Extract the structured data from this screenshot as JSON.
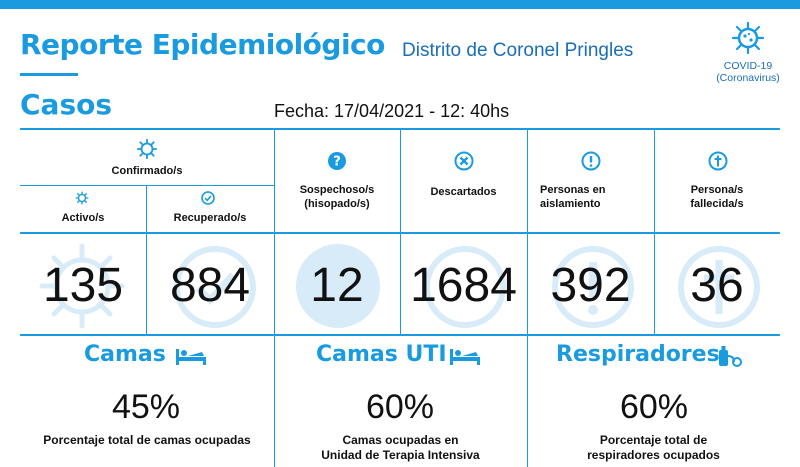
{
  "header": {
    "title": "Reporte Epidemiológico",
    "subtitle": "Distrito de Coronel Pringles",
    "section": "Casos",
    "fecha": "Fecha: 17/04/2021 - 12: 40hs",
    "covid_line1": "COVID-19",
    "covid_line2": "(Coronavirus)"
  },
  "casos": {
    "confirmados_label": "Confirmado/s",
    "activos_label": "Activo/s",
    "recuperados_label": "Recuperado/s",
    "sospechosos_label_1": "Sospechoso/s",
    "sospechosos_label_2": "(hisopado/s)",
    "descartados_label": "Descartados",
    "aislamiento_label_1": "Personas en",
    "aislamiento_label_2": "aislamiento",
    "fallecidos_label_1": "Persona/s",
    "fallecidos_label_2": "fallecida/s",
    "activos": "135",
    "recuperados": "884",
    "sospechosos": "12",
    "descartados": "1684",
    "aislamiento": "392",
    "fallecidos": "36"
  },
  "ocupacion": {
    "camas_title": "Camas",
    "camas_pct": "45%",
    "camas_label": "Porcentaje total de camas ocupadas",
    "uti_title": "Camas UTI",
    "uti_pct": "60%",
    "uti_label_1": "Camas ocupadas en",
    "uti_label_2": "Unidad de Terapia Intensiva",
    "resp_title": "Respiradores",
    "resp_pct": "60%",
    "resp_label_1": "Porcentaje total de",
    "resp_label_2": "respiradores ocupados"
  },
  "colors": {
    "accent": "#1a9be0",
    "dark_accent": "#1a6eb8",
    "deco": "#d7ecf8"
  },
  "icons": [
    "virus-icon",
    "check-icon",
    "question-icon",
    "x-icon",
    "exclamation-icon",
    "cross-icon",
    "bed-icon",
    "uti-bed-icon",
    "respirator-icon"
  ]
}
